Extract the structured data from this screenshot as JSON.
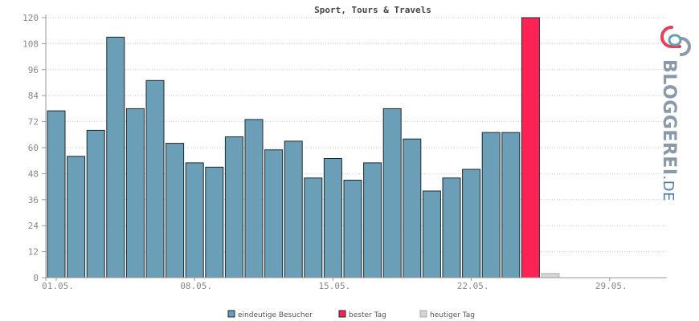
{
  "chart_data": {
    "type": "bar",
    "title": "Sport, Tours & Travels",
    "xlabel": "",
    "ylabel": "",
    "ylim": [
      0,
      120
    ],
    "yticks": [
      0,
      12,
      24,
      36,
      48,
      60,
      72,
      84,
      96,
      108,
      120
    ],
    "x_tick_labels": [
      {
        "index": 0,
        "label": "01.05."
      },
      {
        "index": 7,
        "label": "08.05."
      },
      {
        "index": 14,
        "label": "15.05."
      },
      {
        "index": 21,
        "label": "22.05."
      },
      {
        "index": 28,
        "label": "29.05."
      }
    ],
    "num_slots": 31,
    "grid": true,
    "legend_placement": "bottom-center",
    "series": [
      {
        "name": "eindeutige Besucher",
        "color": "#6b9fb7",
        "values": [
          77,
          56,
          68,
          111,
          78,
          91,
          62,
          53,
          51,
          65,
          73,
          59,
          63,
          46,
          55,
          45,
          53,
          78,
          64,
          40,
          46,
          50,
          67,
          67,
          null,
          null,
          null,
          null,
          null,
          null,
          null
        ]
      },
      {
        "name": "bester Tag",
        "color": "#ff2255",
        "values": [
          null,
          null,
          null,
          null,
          null,
          null,
          null,
          null,
          null,
          null,
          null,
          null,
          null,
          null,
          null,
          null,
          null,
          null,
          null,
          null,
          null,
          null,
          null,
          null,
          120,
          null,
          null,
          null,
          null,
          null,
          null
        ]
      },
      {
        "name": "heutiger Tag",
        "color": "#d4d4d4",
        "values": [
          null,
          null,
          null,
          null,
          null,
          null,
          null,
          null,
          null,
          null,
          null,
          null,
          null,
          null,
          null,
          null,
          null,
          null,
          null,
          null,
          null,
          null,
          null,
          null,
          null,
          2,
          null,
          null,
          null,
          null,
          null
        ]
      }
    ]
  },
  "logo": {
    "text": "BLOGGEREI.DE",
    "main": "BLOGGEREI",
    "suffix": ".DE",
    "colors": {
      "text": "#8a9aaa",
      "accent": "#e0435a",
      "suffix": "#4a7fa8"
    }
  }
}
